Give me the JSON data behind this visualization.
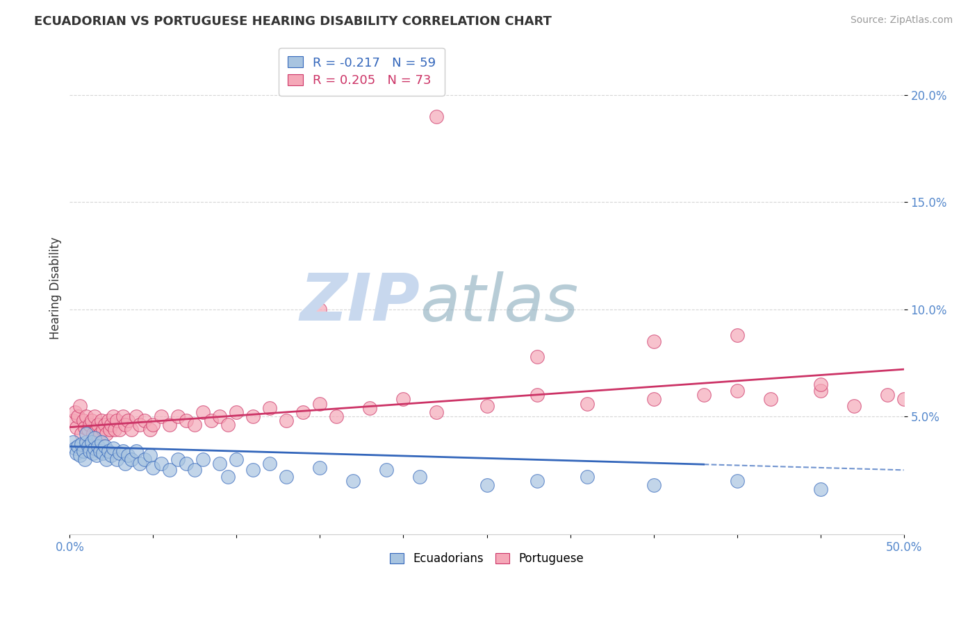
{
  "title": "ECUADORIAN VS PORTUGUESE HEARING DISABILITY CORRELATION CHART",
  "source": "Source: ZipAtlas.com",
  "ylabel": "Hearing Disability",
  "ytick_labels": [
    "5.0%",
    "10.0%",
    "15.0%",
    "20.0%"
  ],
  "ytick_values": [
    0.05,
    0.1,
    0.15,
    0.2
  ],
  "xlim": [
    0.0,
    0.5
  ],
  "ylim": [
    -0.005,
    0.225
  ],
  "legend_blue_label": "R = -0.217   N = 59",
  "legend_pink_label": "R = 0.205   N = 73",
  "blue_color": "#A8C4E0",
  "pink_color": "#F5A8B8",
  "blue_line_color": "#3366BB",
  "pink_line_color": "#CC3366",
  "watermark_color": "#C8D8EE",
  "background_color": "#FFFFFF",
  "ecuadorians_x": [
    0.002,
    0.003,
    0.004,
    0.005,
    0.006,
    0.007,
    0.008,
    0.009,
    0.01,
    0.01,
    0.011,
    0.012,
    0.013,
    0.014,
    0.015,
    0.015,
    0.016,
    0.017,
    0.018,
    0.019,
    0.02,
    0.021,
    0.022,
    0.023,
    0.025,
    0.026,
    0.028,
    0.03,
    0.032,
    0.033,
    0.035,
    0.037,
    0.04,
    0.042,
    0.045,
    0.048,
    0.05,
    0.055,
    0.06,
    0.065,
    0.07,
    0.075,
    0.08,
    0.09,
    0.095,
    0.1,
    0.11,
    0.12,
    0.13,
    0.15,
    0.17,
    0.19,
    0.21,
    0.25,
    0.28,
    0.31,
    0.35,
    0.4,
    0.45
  ],
  "ecuadorians_y": [
    0.038,
    0.035,
    0.033,
    0.036,
    0.032,
    0.037,
    0.034,
    0.03,
    0.038,
    0.042,
    0.036,
    0.034,
    0.038,
    0.033,
    0.035,
    0.04,
    0.032,
    0.036,
    0.034,
    0.038,
    0.033,
    0.036,
    0.03,
    0.034,
    0.032,
    0.035,
    0.03,
    0.033,
    0.034,
    0.028,
    0.032,
    0.03,
    0.034,
    0.028,
    0.03,
    0.032,
    0.026,
    0.028,
    0.025,
    0.03,
    0.028,
    0.025,
    0.03,
    0.028,
    0.022,
    0.03,
    0.025,
    0.028,
    0.022,
    0.026,
    0.02,
    0.025,
    0.022,
    0.018,
    0.02,
    0.022,
    0.018,
    0.02,
    0.016
  ],
  "portuguese_x": [
    0.002,
    0.003,
    0.004,
    0.005,
    0.006,
    0.007,
    0.008,
    0.009,
    0.01,
    0.011,
    0.012,
    0.013,
    0.014,
    0.015,
    0.016,
    0.017,
    0.018,
    0.019,
    0.02,
    0.021,
    0.022,
    0.023,
    0.024,
    0.025,
    0.026,
    0.027,
    0.028,
    0.03,
    0.032,
    0.033,
    0.035,
    0.037,
    0.04,
    0.042,
    0.045,
    0.048,
    0.05,
    0.055,
    0.06,
    0.065,
    0.07,
    0.075,
    0.08,
    0.085,
    0.09,
    0.095,
    0.1,
    0.11,
    0.12,
    0.13,
    0.14,
    0.15,
    0.16,
    0.18,
    0.2,
    0.22,
    0.25,
    0.28,
    0.31,
    0.35,
    0.38,
    0.4,
    0.42,
    0.45,
    0.47,
    0.49,
    0.5,
    0.35,
    0.4,
    0.45,
    0.22,
    0.15,
    0.28
  ],
  "portuguese_y": [
    0.048,
    0.052,
    0.045,
    0.05,
    0.055,
    0.042,
    0.048,
    0.045,
    0.05,
    0.044,
    0.046,
    0.048,
    0.042,
    0.05,
    0.044,
    0.046,
    0.042,
    0.048,
    0.044,
    0.046,
    0.042,
    0.048,
    0.044,
    0.046,
    0.05,
    0.044,
    0.048,
    0.044,
    0.05,
    0.046,
    0.048,
    0.044,
    0.05,
    0.046,
    0.048,
    0.044,
    0.046,
    0.05,
    0.046,
    0.05,
    0.048,
    0.046,
    0.052,
    0.048,
    0.05,
    0.046,
    0.052,
    0.05,
    0.054,
    0.048,
    0.052,
    0.056,
    0.05,
    0.054,
    0.058,
    0.052,
    0.055,
    0.06,
    0.056,
    0.058,
    0.06,
    0.062,
    0.058,
    0.062,
    0.055,
    0.06,
    0.058,
    0.085,
    0.088,
    0.065,
    0.19,
    0.1,
    0.078
  ],
  "ec_trend_x0": 0.0,
  "ec_trend_y0": 0.036,
  "ec_trend_x1": 0.5,
  "ec_trend_y1": 0.025,
  "pt_trend_x0": 0.0,
  "pt_trend_y0": 0.045,
  "pt_trend_x1": 0.5,
  "pt_trend_y1": 0.072
}
